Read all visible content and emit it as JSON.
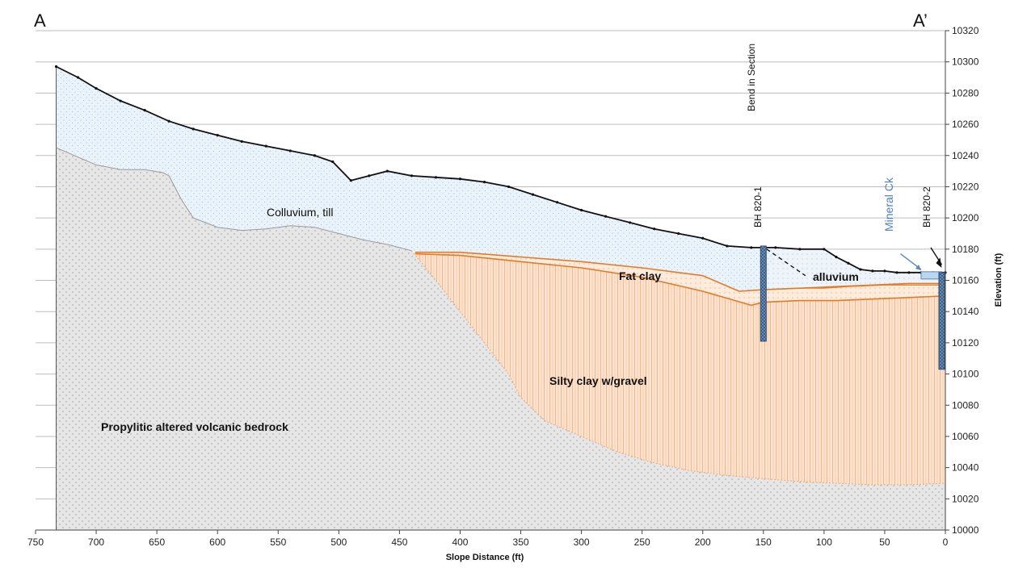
{
  "section": {
    "start_label": "A",
    "end_label": "A’"
  },
  "axes": {
    "x_title": "Slope Distance (ft)",
    "y_title": "Elevation (ft)",
    "x_range": [
      750,
      0
    ],
    "x_ticks": [
      750,
      700,
      650,
      600,
      550,
      500,
      450,
      400,
      350,
      300,
      250,
      200,
      150,
      100,
      50,
      0
    ],
    "y_range": [
      10000,
      10320
    ],
    "y_ticks": [
      10000,
      10020,
      10040,
      10060,
      10080,
      10100,
      10120,
      10140,
      10160,
      10180,
      10200,
      10220,
      10240,
      10260,
      10280,
      10300,
      10320
    ],
    "grid": "horizontal"
  },
  "units": {
    "colluvium": "Colluvium, till",
    "fat_clay": "Fat clay",
    "alluvium": "alluvium",
    "silty_clay": "Silty clay w/gravel",
    "bedrock": "Propylitic altered volcanic bedrock"
  },
  "annotations": {
    "bend": "Bend in Section",
    "bh1": "BH 820-1",
    "bh2": "BH 820-2",
    "creek_a": "Mineral",
    "creek_b": " Ck"
  },
  "colors": {
    "colluvium_fill": "#e8f1f8",
    "bedrock_fill": "#e4e4e4",
    "clay_fill": "#fbdcc3",
    "contact_orange": "#e07b2a",
    "borehole": "#5a7fa8",
    "creek_text": "#4f7ec0",
    "ground_line": "#111111"
  },
  "chart_data": {
    "type": "cross-section",
    "ground_surface": {
      "x": [
        733,
        715,
        700,
        680,
        660,
        640,
        620,
        600,
        580,
        560,
        540,
        520,
        505,
        490,
        475,
        460,
        440,
        420,
        400,
        380,
        360,
        340,
        320,
        300,
        280,
        260,
        240,
        220,
        200,
        180,
        160,
        140,
        120,
        100,
        90,
        80,
        70,
        60,
        50,
        40,
        30,
        20,
        10,
        0
      ],
      "y": [
        10297,
        10290,
        10283,
        10275,
        10269,
        10262,
        10257,
        10253,
        10249,
        10246,
        10243,
        10240,
        10236,
        10224,
        10227,
        10230,
        10227,
        10226,
        10225,
        10223,
        10220,
        10215,
        10210,
        10205,
        10201,
        10197,
        10193,
        10190,
        10187,
        10182,
        10181,
        10181,
        10180,
        10180,
        10175,
        10171,
        10167,
        10166,
        10166,
        10165,
        10165,
        10165,
        10165,
        10165
      ]
    },
    "bedrock_top": {
      "x": [
        733,
        715,
        700,
        680,
        660,
        645,
        640,
        630,
        620,
        600,
        580,
        560,
        540,
        520,
        500,
        480,
        460,
        440
      ],
      "y": [
        10245,
        10239,
        10234,
        10231,
        10231,
        10229,
        10227,
        10212,
        10200,
        10194,
        10192,
        10193,
        10195,
        10194,
        10190,
        10186,
        10183,
        10179
      ]
    },
    "clay_base": {
      "x": [
        440,
        420,
        400,
        380,
        360,
        350,
        330,
        300,
        270,
        240,
        210,
        180,
        150,
        120,
        90,
        60,
        30,
        0
      ],
      "y": [
        10179,
        10160,
        10140,
        10120,
        10100,
        10085,
        10070,
        10060,
        10050,
        10043,
        10038,
        10035,
        10033,
        10031,
        10030,
        10029,
        10029,
        10030
      ]
    },
    "fat_clay_top": {
      "x": [
        437,
        400,
        350,
        300,
        250,
        200,
        170,
        150,
        120,
        90,
        60,
        30,
        0
      ],
      "y": [
        10178,
        10178,
        10175,
        10172,
        10168,
        10163,
        10153,
        10154,
        10155,
        10156,
        10157,
        10158,
        10158
      ]
    },
    "fat_clay_base": {
      "x": [
        437,
        400,
        350,
        300,
        250,
        200,
        160,
        150,
        120,
        90,
        60,
        30,
        0
      ],
      "y": [
        10177,
        10176,
        10172,
        10168,
        10162,
        10153,
        10144,
        10146,
        10147,
        10147,
        10148,
        10149,
        10150
      ]
    },
    "alluvium_contact": {
      "x": [
        150,
        120,
        100,
        80,
        50,
        20,
        0
      ],
      "y": [
        10154,
        10155,
        10155,
        10156,
        10157,
        10157,
        10157
      ]
    },
    "boreholes": [
      {
        "name": "BH 820-1",
        "x": 150,
        "top": 10182,
        "bottom": 10121
      },
      {
        "name": "BH 820-2",
        "x": 3,
        "top": 10165,
        "bottom": 10103
      }
    ],
    "bend_in_section_x": 150,
    "creek": {
      "x": [
        20,
        3
      ],
      "y": 10165
    }
  }
}
